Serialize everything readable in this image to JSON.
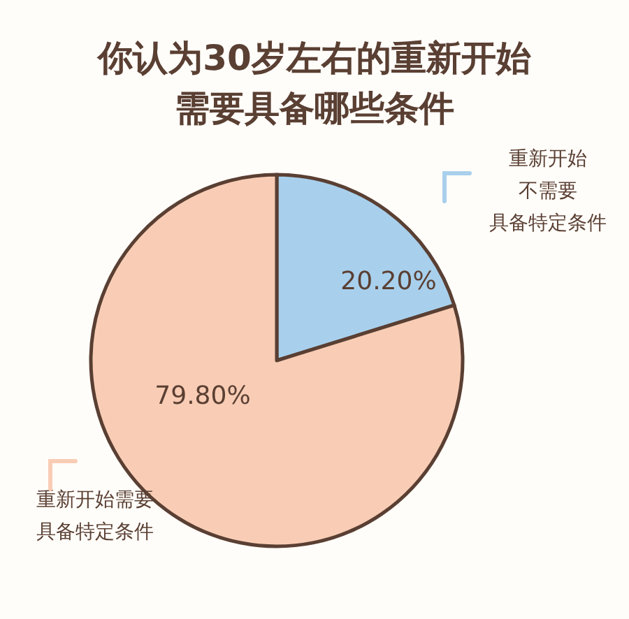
{
  "chart_data": {
    "type": "pie",
    "title": "你认为30岁左右的重新开始需要具备哪些条件",
    "categories": [
      "重新开始不需要具备特定条件",
      "重新开始需要具备特定条件"
    ],
    "values": [
      20.2,
      79.8
    ],
    "colors": [
      "#a8d0ec",
      "#f9cdb5"
    ],
    "value_labels": [
      "20.20%",
      "79.80%"
    ]
  }
}
